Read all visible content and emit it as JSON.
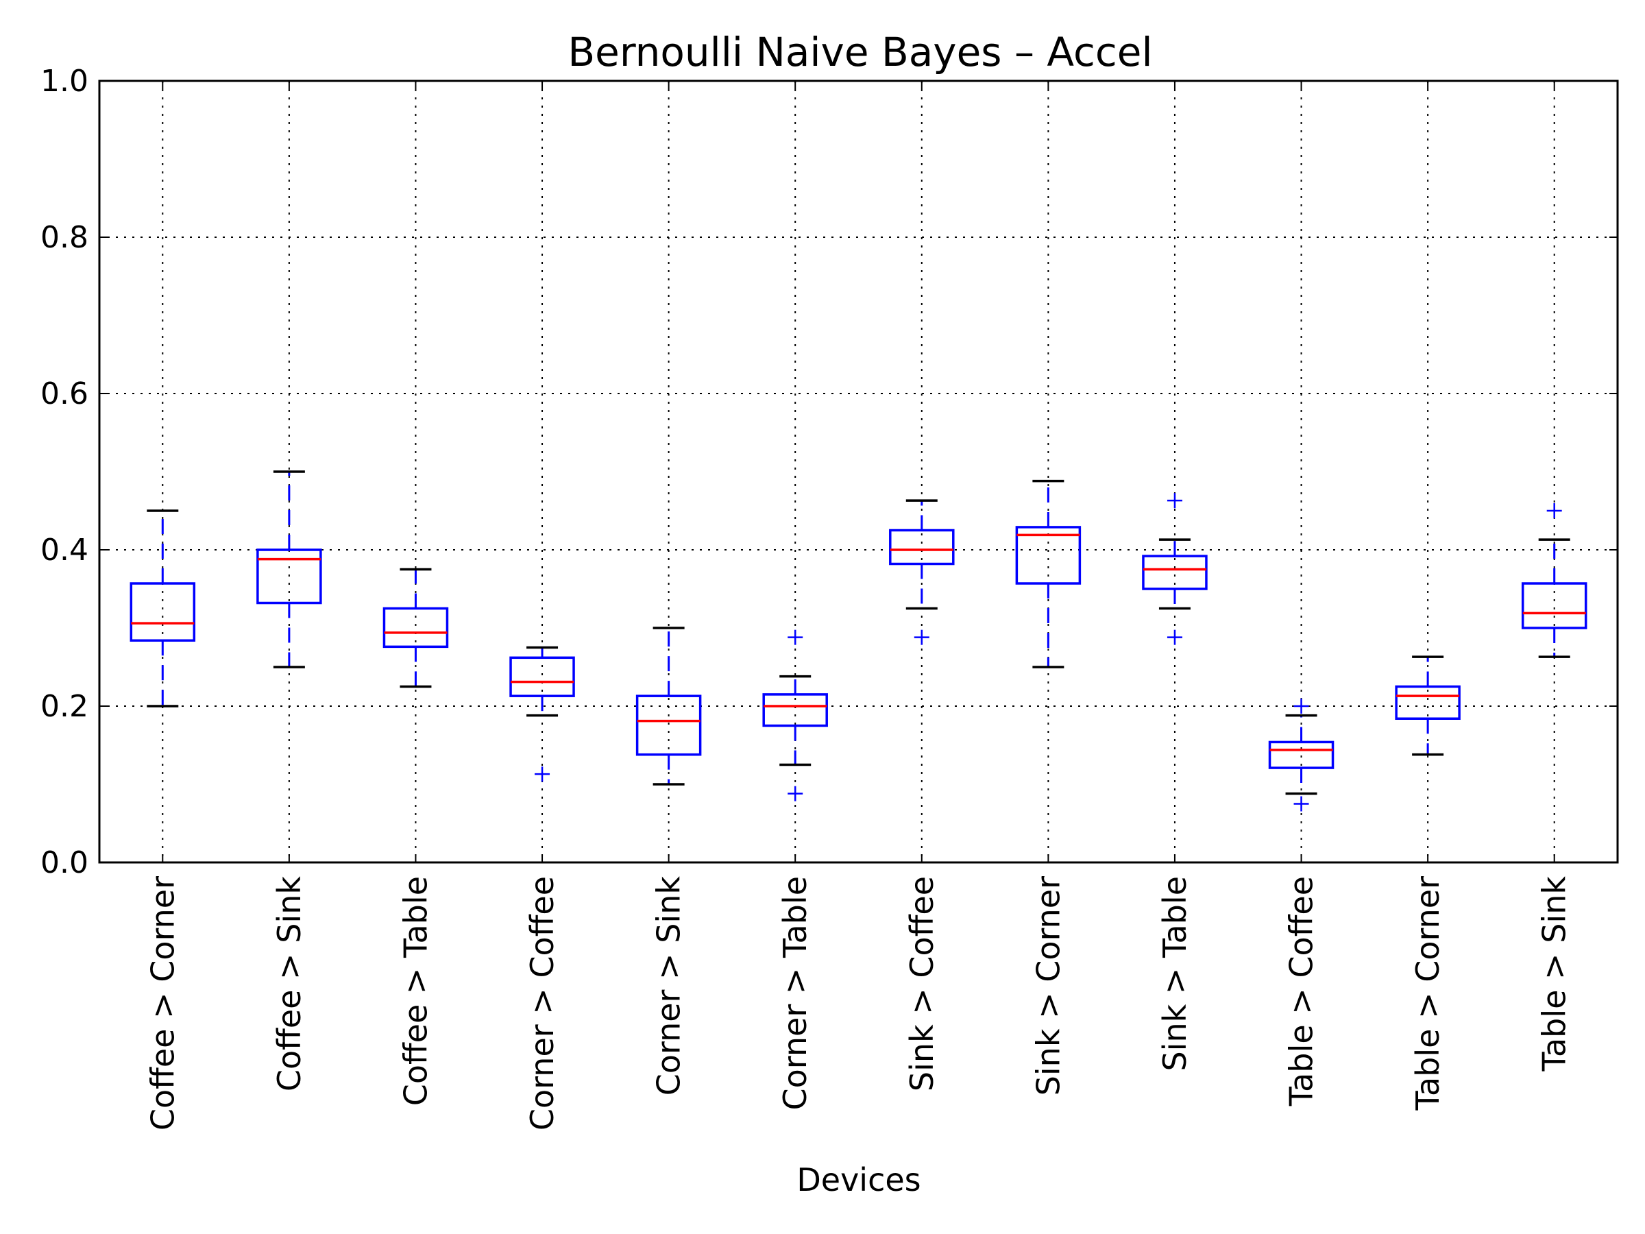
{
  "chart_data": {
    "type": "box",
    "title": "Bernoulli Naive Bayes – Accel",
    "xlabel": "Devices",
    "ylabel": "",
    "ylim": [
      0.0,
      1.0
    ],
    "yticks": [
      "0.0",
      "0.2",
      "0.4",
      "0.6",
      "0.8",
      "1.0"
    ],
    "grid": true,
    "colors": {
      "box": "#0000ff",
      "median": "#ff0000",
      "cap": "#000000",
      "outlier": "#0000ff"
    },
    "categories": [
      "Coffee > Corner",
      "Coffee > Sink",
      "Coffee > Table",
      "Corner > Coffee",
      "Corner > Sink",
      "Corner > Table",
      "Sink > Coffee",
      "Sink > Corner",
      "Sink > Table",
      "Table > Coffee",
      "Table > Corner",
      "Table > Sink"
    ],
    "boxes": [
      {
        "whisker_low": 0.2,
        "q1": 0.284,
        "median": 0.306,
        "q3": 0.357,
        "whisker_high": 0.45,
        "outliers": []
      },
      {
        "whisker_low": 0.25,
        "q1": 0.332,
        "median": 0.388,
        "q3": 0.4,
        "whisker_high": 0.5,
        "outliers": []
      },
      {
        "whisker_low": 0.225,
        "q1": 0.276,
        "median": 0.294,
        "q3": 0.325,
        "whisker_high": 0.375,
        "outliers": []
      },
      {
        "whisker_low": 0.188,
        "q1": 0.213,
        "median": 0.231,
        "q3": 0.262,
        "whisker_high": 0.275,
        "outliers": [
          0.113
        ]
      },
      {
        "whisker_low": 0.1,
        "q1": 0.138,
        "median": 0.181,
        "q3": 0.213,
        "whisker_high": 0.3,
        "outliers": []
      },
      {
        "whisker_low": 0.125,
        "q1": 0.175,
        "median": 0.2,
        "q3": 0.215,
        "whisker_high": 0.238,
        "outliers": [
          0.288,
          0.088
        ]
      },
      {
        "whisker_low": 0.325,
        "q1": 0.382,
        "median": 0.4,
        "q3": 0.425,
        "whisker_high": 0.463,
        "outliers": [
          0.288
        ]
      },
      {
        "whisker_low": 0.25,
        "q1": 0.357,
        "median": 0.419,
        "q3": 0.429,
        "whisker_high": 0.488,
        "outliers": []
      },
      {
        "whisker_low": 0.325,
        "q1": 0.35,
        "median": 0.375,
        "q3": 0.392,
        "whisker_high": 0.413,
        "outliers": [
          0.463,
          0.288
        ]
      },
      {
        "whisker_low": 0.088,
        "q1": 0.121,
        "median": 0.144,
        "q3": 0.154,
        "whisker_high": 0.188,
        "outliers": [
          0.2,
          0.075
        ]
      },
      {
        "whisker_low": 0.138,
        "q1": 0.184,
        "median": 0.213,
        "q3": 0.225,
        "whisker_high": 0.263,
        "outliers": []
      },
      {
        "whisker_low": 0.263,
        "q1": 0.3,
        "median": 0.319,
        "q3": 0.357,
        "whisker_high": 0.413,
        "outliers": [
          0.45
        ]
      }
    ]
  }
}
